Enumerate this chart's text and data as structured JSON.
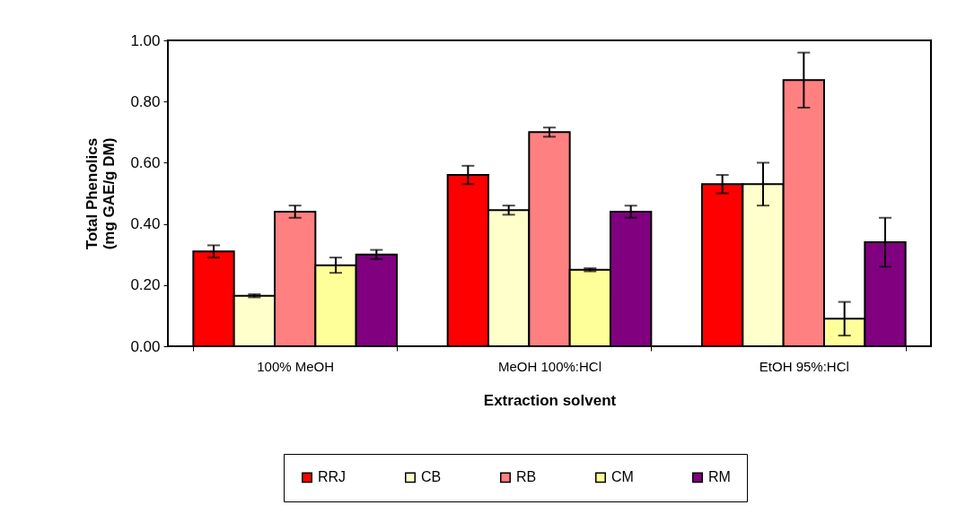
{
  "chart_data": {
    "type": "bar",
    "xlabel": "Extraction solvent",
    "ylabel": "Total Phenolics\n(mg GAE/g DM)",
    "categories": [
      "100% MeOH",
      "MeOH 100%:HCl",
      "EtOH 95%:HCl"
    ],
    "series": [
      {
        "name": "RRJ",
        "color": "#ff0000",
        "values": [
          0.31,
          0.56,
          0.53
        ],
        "errors": [
          0.02,
          0.03,
          0.03
        ]
      },
      {
        "name": "CB",
        "color": "#ffffcc",
        "values": [
          0.165,
          0.445,
          0.53
        ],
        "errors": [
          0.005,
          0.015,
          0.07
        ]
      },
      {
        "name": "RB",
        "color": "#ff8080",
        "values": [
          0.44,
          0.7,
          0.87
        ],
        "errors": [
          0.02,
          0.015,
          0.09
        ]
      },
      {
        "name": "CM",
        "color": "#ffff99",
        "values": [
          0.265,
          0.25,
          0.09
        ],
        "errors": [
          0.025,
          0.005,
          0.055
        ]
      },
      {
        "name": "RM",
        "color": "#800080",
        "values": [
          0.3,
          0.44,
          0.34
        ],
        "errors": [
          0.015,
          0.02,
          0.08
        ]
      }
    ],
    "ylim": [
      0,
      1
    ],
    "yticks": [
      {
        "value": 0,
        "label": "0.00"
      },
      {
        "value": 0.2,
        "label": "0.20"
      },
      {
        "value": 0.4,
        "label": "0.40"
      },
      {
        "value": 0.6,
        "label": "0.60"
      },
      {
        "value": 0.8,
        "label": "0.80"
      },
      {
        "value": 1,
        "label": "1.00"
      }
    ],
    "grid": false,
    "legend": "bottom"
  }
}
